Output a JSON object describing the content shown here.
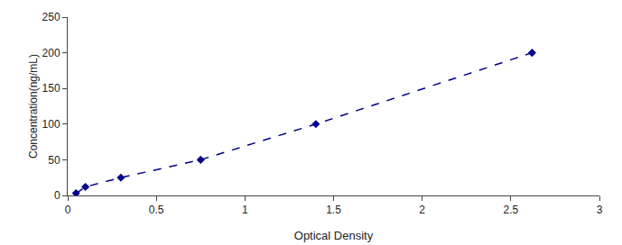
{
  "chart_data": {
    "type": "line",
    "x": [
      0.047,
      0.1,
      0.3,
      0.75,
      1.4,
      2.62
    ],
    "values": [
      3,
      12,
      25,
      50,
      100,
      200
    ],
    "color": "#00008B",
    "marker": "diamond",
    "line_style": "dashed",
    "xlabel": "Optical Density",
    "ylabel": "Concentration(ng/mL)",
    "xlim": [
      0,
      3
    ],
    "ylim": [
      0,
      250
    ],
    "xticks": [
      0,
      0.5,
      1,
      1.5,
      2,
      2.5,
      3
    ],
    "yticks": [
      0,
      50,
      100,
      150,
      200,
      250
    ],
    "grid": false
  }
}
